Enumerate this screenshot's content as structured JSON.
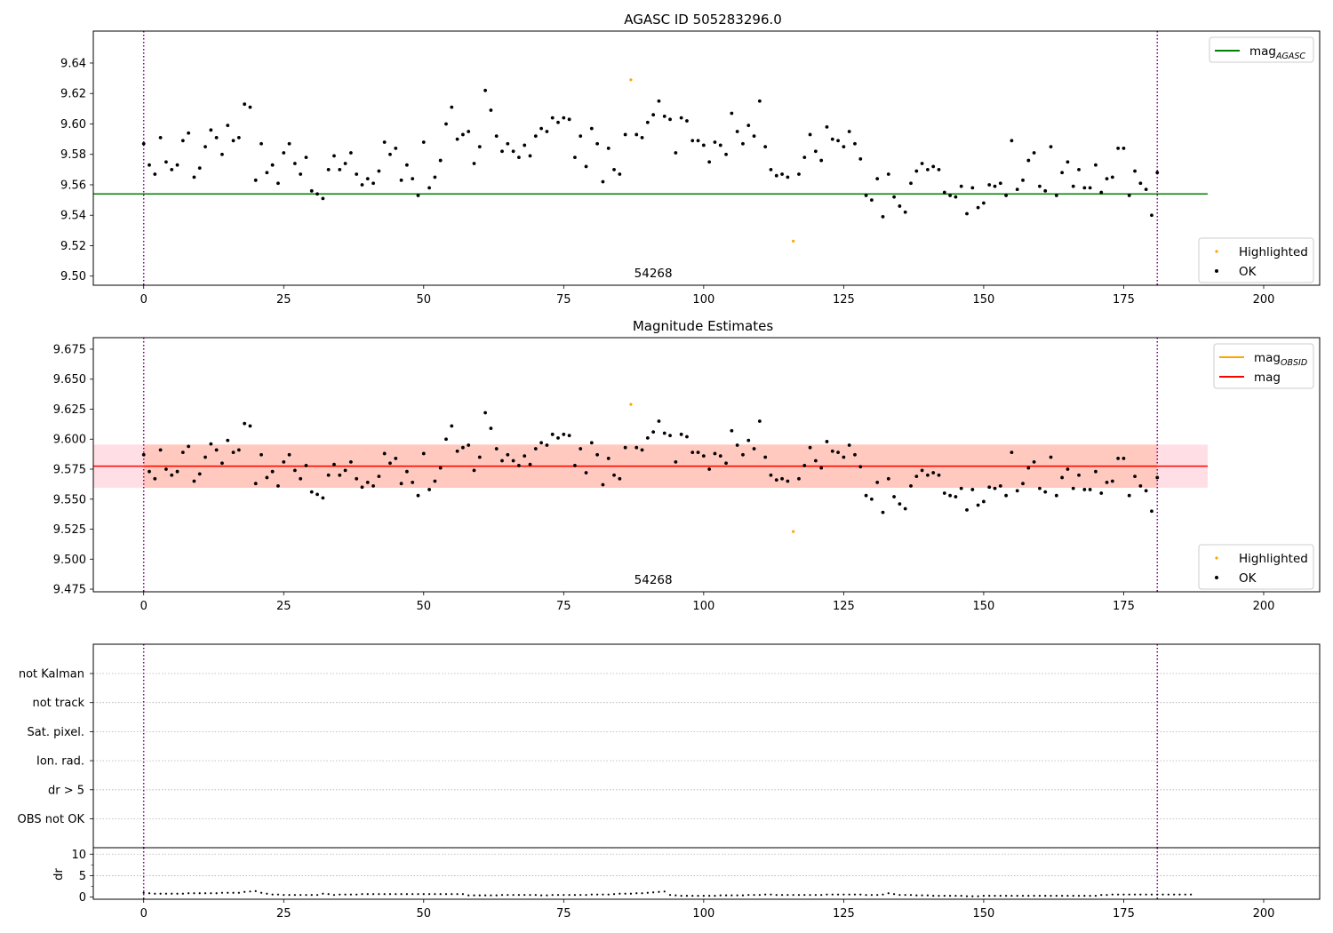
{
  "chart_data": [
    {
      "type": "scatter",
      "title": "AGASC ID 505283296.0",
      "xlim": [
        -9,
        210
      ],
      "ylim": [
        9.494,
        9.661
      ],
      "xticks": [
        "0",
        "25",
        "50",
        "75",
        "100",
        "125",
        "150",
        "175",
        "200"
      ],
      "yticks": [
        "9.50",
        "9.52",
        "9.54",
        "9.56",
        "9.58",
        "9.60",
        "9.62",
        "9.64"
      ],
      "obsid_label": "54268",
      "vlines_x": [
        0,
        181
      ],
      "reference_line": {
        "name": "mag",
        "name_sub": "AGASC",
        "y": 9.554,
        "x_range": [
          -9,
          190
        ],
        "color": "#008000"
      },
      "legend_top": [
        {
          "name": "mag",
          "name_sub": "AGASC",
          "color": "#008000",
          "kind": "line"
        }
      ],
      "legend_bottom": [
        {
          "name": "Highlighted",
          "color": "#FFA500",
          "kind": "point"
        },
        {
          "name": "OK",
          "color": "#000000",
          "kind": "point"
        }
      ],
      "series": [
        {
          "name": "OK",
          "color": "#000000"
        },
        {
          "name": "Highlighted",
          "color": "#FFA500"
        }
      ]
    },
    {
      "type": "scatter",
      "title": "Magnitude Estimates",
      "xlim": [
        -9,
        210
      ],
      "ylim": [
        9.4728,
        9.6846
      ],
      "xticks": [
        "0",
        "25",
        "50",
        "75",
        "100",
        "125",
        "150",
        "175",
        "200"
      ],
      "yticks": [
        "9.475",
        "9.500",
        "9.525",
        "9.550",
        "9.575",
        "9.600",
        "9.625",
        "9.650",
        "9.675"
      ],
      "obsid_label": "54268",
      "vlines_x": [
        0,
        181
      ],
      "bands": [
        {
          "y": [
            9.5595,
            9.5955
          ],
          "x_range": [
            -9,
            190
          ],
          "color": "#FFC0CB",
          "opacity": 0.5
        },
        {
          "y": [
            9.5595,
            9.5955
          ],
          "x_range": [
            0,
            181
          ],
          "color": "#FFA07A",
          "opacity": 0.35
        }
      ],
      "lines": [
        {
          "name": "mag",
          "name_sub": "OBSID",
          "y": 9.5775,
          "x_range": [
            0,
            181
          ],
          "color": "#FFA500"
        },
        {
          "name": "mag",
          "y": 9.5775,
          "x_range": [
            -9,
            190
          ],
          "color": "#FF0000"
        }
      ],
      "legend_top": [
        {
          "name": "mag",
          "name_sub": "OBSID",
          "color": "#FFA500",
          "kind": "line"
        },
        {
          "name": "mag",
          "color": "#FF0000",
          "kind": "line"
        }
      ],
      "legend_bottom": [
        {
          "name": "Highlighted",
          "color": "#FFA500",
          "kind": "point"
        },
        {
          "name": "OK",
          "color": "#000000",
          "kind": "point"
        }
      ]
    },
    {
      "type": "scatter",
      "xlim": [
        -9,
        210
      ],
      "flag_rows": [
        "not Kalman",
        "not track",
        "Sat. pixel.",
        "Ion. rad.",
        "dr > 5",
        "OBS not OK"
      ],
      "vlines_x": [
        0,
        181
      ]
    },
    {
      "type": "scatter",
      "ylabel": "dr",
      "xlim": [
        -9,
        210
      ],
      "ylim": [
        -0.5,
        11.5
      ],
      "xticks": [
        "0",
        "25",
        "50",
        "75",
        "100",
        "125",
        "150",
        "175",
        "200"
      ],
      "yticks": [
        "0",
        "5",
        "10"
      ],
      "vlines_x": [
        0,
        181
      ],
      "dr_values": [
        1.0,
        0.9,
        0.8,
        0.8,
        0.8,
        0.8,
        0.8,
        0.8,
        0.9,
        0.9,
        0.9,
        0.9,
        0.9,
        0.9,
        1.0,
        1.0,
        1.0,
        1.0,
        1.2,
        1.3,
        1.4,
        1.0,
        0.8,
        0.6,
        0.6,
        0.5,
        0.5,
        0.5,
        0.5,
        0.5,
        0.5,
        0.5,
        0.8,
        0.7,
        0.5,
        0.6,
        0.6,
        0.6,
        0.6,
        0.7,
        0.7,
        0.7,
        0.7,
        0.7,
        0.7,
        0.7,
        0.7,
        0.7,
        0.7,
        0.7,
        0.7,
        0.7,
        0.7,
        0.7,
        0.7,
        0.7,
        0.7,
        0.7,
        0.4,
        0.4,
        0.4,
        0.4,
        0.4,
        0.4,
        0.5,
        0.5,
        0.5,
        0.5,
        0.5,
        0.5,
        0.5,
        0.4,
        0.4,
        0.5,
        0.5,
        0.5,
        0.5,
        0.5,
        0.5,
        0.5,
        0.6,
        0.6,
        0.6,
        0.6,
        0.7,
        0.8,
        0.8,
        0.8,
        0.9,
        0.9,
        1.0,
        1.1,
        1.2,
        1.3,
        0.5,
        0.4,
        0.3,
        0.3,
        0.3,
        0.3,
        0.3,
        0.3,
        0.3,
        0.4,
        0.4,
        0.4,
        0.4,
        0.4,
        0.5,
        0.5,
        0.5,
        0.6,
        0.6,
        0.5,
        0.5,
        0.5,
        0.5,
        0.5,
        0.5,
        0.5,
        0.5,
        0.5,
        0.6,
        0.6,
        0.6,
        0.6,
        0.6,
        0.6,
        0.6,
        0.5,
        0.5,
        0.5,
        0.6,
        0.9,
        0.7,
        0.5,
        0.5,
        0.5,
        0.4,
        0.4,
        0.4,
        0.3,
        0.3,
        0.3,
        0.3,
        0.3,
        0.3,
        0.2,
        0.2,
        0.2,
        0.3,
        0.3,
        0.3,
        0.3,
        0.3,
        0.3,
        0.3,
        0.3,
        0.3,
        0.3,
        0.3,
        0.3,
        0.3,
        0.3,
        0.3,
        0.3,
        0.3,
        0.3,
        0.3,
        0.3,
        0.3,
        0.5,
        0.5,
        0.6,
        0.6,
        0.6,
        0.6,
        0.6,
        0.6,
        0.6,
        0.6,
        0.6,
        0.6,
        0.6,
        0.6,
        0.6,
        0.6,
        0.6
      ]
    }
  ],
  "mag_points": [
    {
      "x": 0,
      "y": 9.587
    },
    {
      "x": 1,
      "y": 9.573
    },
    {
      "x": 2,
      "y": 9.567
    },
    {
      "x": 3,
      "y": 9.591
    },
    {
      "x": 4,
      "y": 9.575
    },
    {
      "x": 5,
      "y": 9.57
    },
    {
      "x": 6,
      "y": 9.573
    },
    {
      "x": 7,
      "y": 9.589
    },
    {
      "x": 8,
      "y": 9.594
    },
    {
      "x": 9,
      "y": 9.565
    },
    {
      "x": 10,
      "y": 9.571
    },
    {
      "x": 11,
      "y": 9.585
    },
    {
      "x": 12,
      "y": 9.596
    },
    {
      "x": 13,
      "y": 9.591
    },
    {
      "x": 14,
      "y": 9.58
    },
    {
      "x": 15,
      "y": 9.599
    },
    {
      "x": 16,
      "y": 9.589
    },
    {
      "x": 17,
      "y": 9.591
    },
    {
      "x": 18,
      "y": 9.613
    },
    {
      "x": 19,
      "y": 9.611
    },
    {
      "x": 20,
      "y": 9.563
    },
    {
      "x": 21,
      "y": 9.587
    },
    {
      "x": 22,
      "y": 9.568
    },
    {
      "x": 23,
      "y": 9.573
    },
    {
      "x": 24,
      "y": 9.561
    },
    {
      "x": 25,
      "y": 9.581
    },
    {
      "x": 26,
      "y": 9.587
    },
    {
      "x": 27,
      "y": 9.574
    },
    {
      "x": 28,
      "y": 9.567
    },
    {
      "x": 29,
      "y": 9.578
    },
    {
      "x": 30,
      "y": 9.556
    },
    {
      "x": 31,
      "y": 9.554
    },
    {
      "x": 32,
      "y": 9.551
    },
    {
      "x": 33,
      "y": 9.57
    },
    {
      "x": 34,
      "y": 9.579
    },
    {
      "x": 35,
      "y": 9.57
    },
    {
      "x": 36,
      "y": 9.574
    },
    {
      "x": 37,
      "y": 9.581
    },
    {
      "x": 38,
      "y": 9.567
    },
    {
      "x": 39,
      "y": 9.56
    },
    {
      "x": 40,
      "y": 9.564
    },
    {
      "x": 41,
      "y": 9.561
    },
    {
      "x": 42,
      "y": 9.569
    },
    {
      "x": 43,
      "y": 9.588
    },
    {
      "x": 44,
      "y": 9.58
    },
    {
      "x": 45,
      "y": 9.584
    },
    {
      "x": 46,
      "y": 9.563
    },
    {
      "x": 47,
      "y": 9.573
    },
    {
      "x": 48,
      "y": 9.564
    },
    {
      "x": 49,
      "y": 9.553
    },
    {
      "x": 50,
      "y": 9.588
    },
    {
      "x": 51,
      "y": 9.558
    },
    {
      "x": 52,
      "y": 9.565
    },
    {
      "x": 53,
      "y": 9.576
    },
    {
      "x": 54,
      "y": 9.6
    },
    {
      "x": 55,
      "y": 9.611
    },
    {
      "x": 56,
      "y": 9.59
    },
    {
      "x": 57,
      "y": 9.593
    },
    {
      "x": 58,
      "y": 9.595
    },
    {
      "x": 59,
      "y": 9.574
    },
    {
      "x": 60,
      "y": 9.585
    },
    {
      "x": 61,
      "y": 9.622
    },
    {
      "x": 62,
      "y": 9.609
    },
    {
      "x": 63,
      "y": 9.592
    },
    {
      "x": 64,
      "y": 9.582
    },
    {
      "x": 65,
      "y": 9.587
    },
    {
      "x": 66,
      "y": 9.582
    },
    {
      "x": 67,
      "y": 9.578
    },
    {
      "x": 68,
      "y": 9.586
    },
    {
      "x": 69,
      "y": 9.579
    },
    {
      "x": 70,
      "y": 9.592
    },
    {
      "x": 71,
      "y": 9.597
    },
    {
      "x": 72,
      "y": 9.595
    },
    {
      "x": 73,
      "y": 9.604
    },
    {
      "x": 74,
      "y": 9.601
    },
    {
      "x": 75,
      "y": 9.604
    },
    {
      "x": 76,
      "y": 9.603
    },
    {
      "x": 77,
      "y": 9.578
    },
    {
      "x": 78,
      "y": 9.592
    },
    {
      "x": 79,
      "y": 9.572
    },
    {
      "x": 80,
      "y": 9.597
    },
    {
      "x": 81,
      "y": 9.587
    },
    {
      "x": 82,
      "y": 9.562
    },
    {
      "x": 83,
      "y": 9.584
    },
    {
      "x": 84,
      "y": 9.57
    },
    {
      "x": 85,
      "y": 9.567
    },
    {
      "x": 86,
      "y": 9.593
    },
    {
      "x": 87,
      "y": 9.629,
      "hl": true
    },
    {
      "x": 88,
      "y": 9.593
    },
    {
      "x": 89,
      "y": 9.591
    },
    {
      "x": 90,
      "y": 9.601
    },
    {
      "x": 91,
      "y": 9.606
    },
    {
      "x": 92,
      "y": 9.615
    },
    {
      "x": 93,
      "y": 9.605
    },
    {
      "x": 94,
      "y": 9.603
    },
    {
      "x": 95,
      "y": 9.581
    },
    {
      "x": 96,
      "y": 9.604
    },
    {
      "x": 97,
      "y": 9.602
    },
    {
      "x": 98,
      "y": 9.589
    },
    {
      "x": 99,
      "y": 9.589
    },
    {
      "x": 100,
      "y": 9.586
    },
    {
      "x": 101,
      "y": 9.575
    },
    {
      "x": 102,
      "y": 9.588
    },
    {
      "x": 103,
      "y": 9.586
    },
    {
      "x": 104,
      "y": 9.58
    },
    {
      "x": 105,
      "y": 9.607
    },
    {
      "x": 106,
      "y": 9.595
    },
    {
      "x": 107,
      "y": 9.587
    },
    {
      "x": 108,
      "y": 9.599
    },
    {
      "x": 109,
      "y": 9.592
    },
    {
      "x": 110,
      "y": 9.615
    },
    {
      "x": 111,
      "y": 9.585
    },
    {
      "x": 112,
      "y": 9.57
    },
    {
      "x": 113,
      "y": 9.566
    },
    {
      "x": 114,
      "y": 9.567
    },
    {
      "x": 115,
      "y": 9.565
    },
    {
      "x": 116,
      "y": 9.523,
      "hl": true
    },
    {
      "x": 117,
      "y": 9.567
    },
    {
      "x": 118,
      "y": 9.578
    },
    {
      "x": 119,
      "y": 9.593
    },
    {
      "x": 120,
      "y": 9.582
    },
    {
      "x": 121,
      "y": 9.576
    },
    {
      "x": 122,
      "y": 9.598
    },
    {
      "x": 123,
      "y": 9.59
    },
    {
      "x": 124,
      "y": 9.589
    },
    {
      "x": 125,
      "y": 9.585
    },
    {
      "x": 126,
      "y": 9.595
    },
    {
      "x": 127,
      "y": 9.587
    },
    {
      "x": 128,
      "y": 9.577
    },
    {
      "x": 129,
      "y": 9.553
    },
    {
      "x": 130,
      "y": 9.55
    },
    {
      "x": 131,
      "y": 9.564
    },
    {
      "x": 132,
      "y": 9.539
    },
    {
      "x": 133,
      "y": 9.567
    },
    {
      "x": 134,
      "y": 9.552
    },
    {
      "x": 135,
      "y": 9.546
    },
    {
      "x": 136,
      "y": 9.542
    },
    {
      "x": 137,
      "y": 9.561
    },
    {
      "x": 138,
      "y": 9.569
    },
    {
      "x": 139,
      "y": 9.574
    },
    {
      "x": 140,
      "y": 9.57
    },
    {
      "x": 141,
      "y": 9.572
    },
    {
      "x": 142,
      "y": 9.57
    },
    {
      "x": 143,
      "y": 9.555
    },
    {
      "x": 144,
      "y": 9.553
    },
    {
      "x": 145,
      "y": 9.552
    },
    {
      "x": 146,
      "y": 9.559
    },
    {
      "x": 147,
      "y": 9.541
    },
    {
      "x": 148,
      "y": 9.558
    },
    {
      "x": 149,
      "y": 9.545
    },
    {
      "x": 150,
      "y": 9.548
    },
    {
      "x": 151,
      "y": 9.56
    },
    {
      "x": 152,
      "y": 9.559
    },
    {
      "x": 153,
      "y": 9.561
    },
    {
      "x": 154,
      "y": 9.553
    },
    {
      "x": 155,
      "y": 9.589
    },
    {
      "x": 156,
      "y": 9.557
    },
    {
      "x": 157,
      "y": 9.563
    },
    {
      "x": 158,
      "y": 9.576
    },
    {
      "x": 159,
      "y": 9.581
    },
    {
      "x": 160,
      "y": 9.559
    },
    {
      "x": 161,
      "y": 9.556
    },
    {
      "x": 162,
      "y": 9.585
    },
    {
      "x": 163,
      "y": 9.553
    },
    {
      "x": 164,
      "y": 9.568
    },
    {
      "x": 165,
      "y": 9.575
    },
    {
      "x": 166,
      "y": 9.559
    },
    {
      "x": 167,
      "y": 9.57
    },
    {
      "x": 168,
      "y": 9.558
    },
    {
      "x": 169,
      "y": 9.558
    },
    {
      "x": 170,
      "y": 9.573
    },
    {
      "x": 171,
      "y": 9.555
    },
    {
      "x": 172,
      "y": 9.564
    },
    {
      "x": 173,
      "y": 9.565
    },
    {
      "x": 174,
      "y": 9.584
    },
    {
      "x": 175,
      "y": 9.584
    },
    {
      "x": 176,
      "y": 9.553
    },
    {
      "x": 177,
      "y": 9.569
    },
    {
      "x": 178,
      "y": 9.561
    },
    {
      "x": 179,
      "y": 9.557
    },
    {
      "x": 180,
      "y": 9.54
    },
    {
      "x": 181,
      "y": 9.568
    }
  ]
}
